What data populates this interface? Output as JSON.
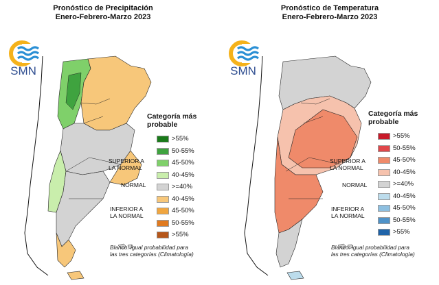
{
  "left_panel": {
    "title_line1": "Pronóstico de Precipitación",
    "title_line2": "Enero-Febrero-Marzo 2023",
    "logo_text": "SMN",
    "legend": {
      "title_line1": "Categoría más",
      "title_line2": "probable",
      "superior_line1": "SUPERIOR A",
      "superior_line2": "LA NORMAL",
      "normal": "NORMAL",
      "inferior_line1": "INFERIOR A",
      "inferior_line2": "LA NORMAL",
      "items": [
        {
          "label": ">55%",
          "color": "#1a7a1a"
        },
        {
          "label": "50-55%",
          "color": "#3fa33f"
        },
        {
          "label": "45-50%",
          "color": "#7fd06a"
        },
        {
          "label": "40-45%",
          "color": "#c9eeac"
        },
        {
          "label": ">=40%",
          "color": "#d3d3d3"
        },
        {
          "label": "40-45%",
          "color": "#f7c77a"
        },
        {
          "label": "45-50%",
          "color": "#f0a640"
        },
        {
          "label": "50-55%",
          "color": "#e07a1f"
        },
        {
          "label": ">55%",
          "color": "#b5561a"
        }
      ],
      "note_line1": "Blanco: igual probabilidad para",
      "note_line2": "las tres categorías (Climatología)"
    }
  },
  "right_panel": {
    "title_line1": "Pronóstico de Temperatura",
    "title_line2": "Enero-Febrero-Marzo 2023",
    "logo_text": "SMN",
    "legend": {
      "title_line1": "Categoría más",
      "title_line2": "probable",
      "superior_line1": "SUPERIOR A",
      "superior_line2": "LA NORMAL",
      "normal": "NORMAL",
      "inferior_line1": "INFERIOR A",
      "inferior_line2": "LA NORMAL",
      "items": [
        {
          "label": ">55%",
          "color": "#c81a2a"
        },
        {
          "label": "50-55%",
          "color": "#e0474a"
        },
        {
          "label": "45-50%",
          "color": "#ef8a6a"
        },
        {
          "label": "40-45%",
          "color": "#f6c2ad"
        },
        {
          "label": ">=40%",
          "color": "#d3d3d3"
        },
        {
          "label": "40-45%",
          "color": "#bcdcec"
        },
        {
          "label": "45-50%",
          "color": "#8dbfe0"
        },
        {
          "label": "50-55%",
          "color": "#4f92c8"
        },
        {
          "label": ">55%",
          "color": "#1f63a8"
        }
      ],
      "note_line1": "Blanco: igual probabilidad para",
      "note_line2": "las tres categorías (Climatología)"
    }
  },
  "colors": {
    "logo_sun": "#f5b21b",
    "logo_waves": "#2a8fd4",
    "logo_text": "#2d4c8f",
    "border": "#1a1a1a"
  }
}
